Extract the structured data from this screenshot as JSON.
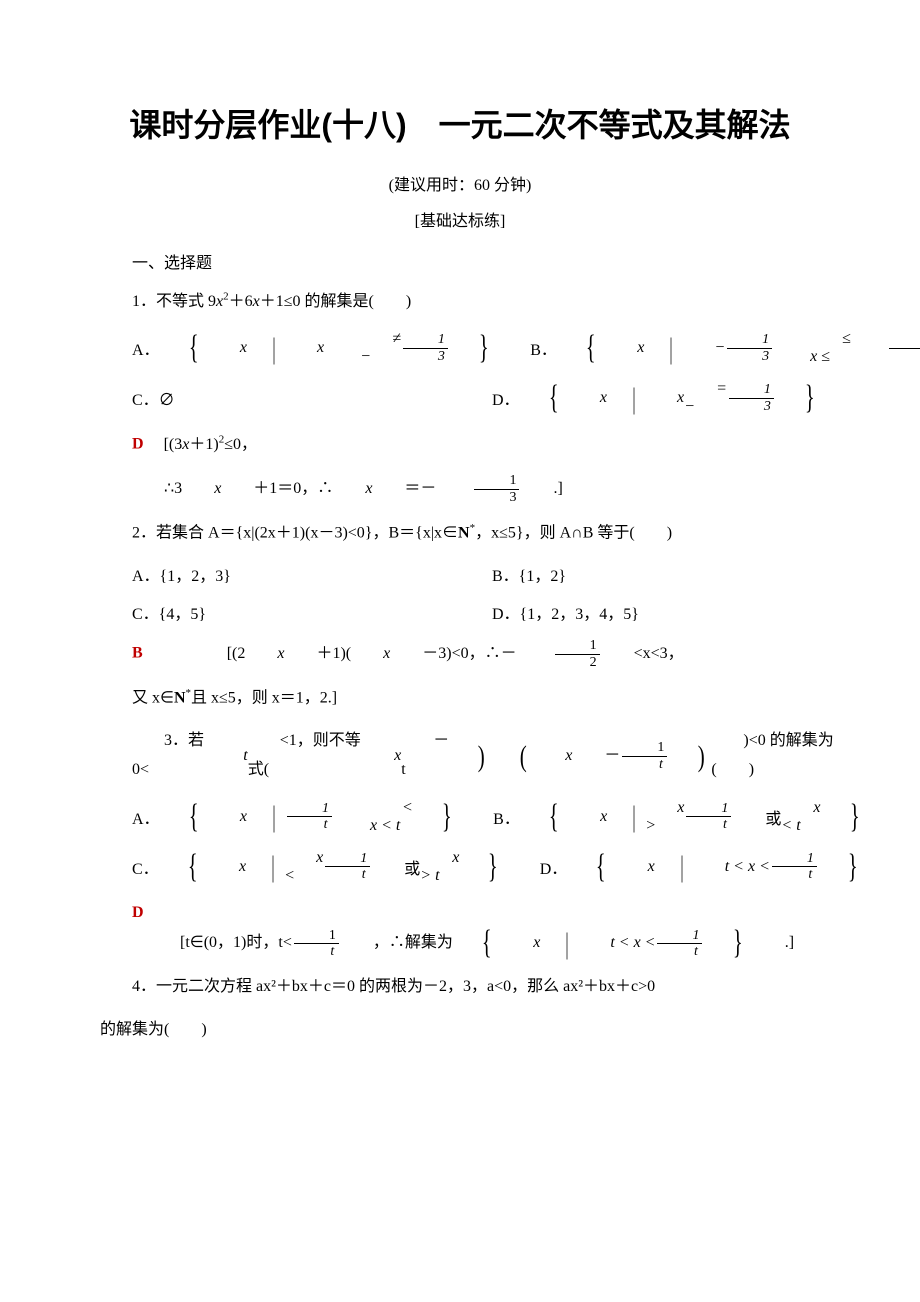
{
  "colors": {
    "answer": "#c00000",
    "text": "#000000",
    "background": "#ffffff"
  },
  "title": "课时分层作业(十八)　一元二次不等式及其解法",
  "subtitle": "(建议用时：60 分钟)",
  "section_label": "[基础达标练]",
  "sec1_header": "一、选择题",
  "q1": {
    "stem_pre": "1．不等式 9",
    "stem_mid": "＋6",
    "stem_post": "＋1≤0 的解集是(　　)",
    "A_lead": "A．",
    "A_set_lhs": "x",
    "A_set_rel": "≠ −",
    "B_lead": "B．",
    "B_set_lhs": "x",
    "B_left": "−",
    "B_rel1": "≤ x ≤",
    "C": "C．∅",
    "D_lead": "D．",
    "D_set_lhs": "x",
    "D_rel": "= −",
    "ans": "D",
    "sol1_pre": "[(3",
    "sol1_mid": "＋1)",
    "sol1_post": "≤0，",
    "sol2_pre": "∴3",
    "sol2_mid": "＋1＝0，∴",
    "sol2_post": "＝－",
    "sol2_end": ".]"
  },
  "q2": {
    "stem_pre": "2．若集合 ",
    "stem_A": "A＝{x|(2x＋1)(x－3)<0}，",
    "stem_B": "B＝{x|x∈",
    "stem_N": "N",
    "stem_star": "*",
    "stem_B2": "，x≤5}，则 ",
    "stem_AcapB": "A∩B 等于(　　)",
    "A": "A．{1，2，3}",
    "B": "B．{1，2}",
    "C": "C．{4，5}",
    "D": "D．{1，2，3，4，5}",
    "ans": "B",
    "sol1_pre": "[(2",
    "sol1_mid": "＋1)(",
    "sol1_mid2": "－3)<0，∴－",
    "sol1_post": "<x<3，",
    "sol2": "又 x∈",
    "sol2_N": "N",
    "sol2_star": "*",
    "sol2_post": "且 x≤5，则 x＝1，2.]"
  },
  "q3": {
    "stem_pre": "3．若 0<",
    "stem_t": "t",
    "stem_mid": "<1，则不等式(",
    "stem_x": "x",
    "stem_minus_t": "－t",
    "stem_paren_mid": ")(",
    "stem_x2": "x",
    "stem_minus": "－",
    "stem_post": ")<0 的解集为(　　)",
    "A_lead": "A．",
    "A_rel": "< x < t",
    "B_lead": "B．",
    "B_rel1": "x >",
    "B_or": "或",
    "B_rel2": "x < t",
    "C_lead": "C．",
    "C_rel1": "x <",
    "C_or": "或",
    "C_rel2": "x > t",
    "D_lead": "D．",
    "D_rel": "t < x <",
    "ans": "D",
    "sol_pre": "[t∈(0，1)时，t<",
    "sol_mid": "，∴解集为",
    "sol_set_rel": "t < x <",
    "sol_end": ".]"
  },
  "q4": {
    "line1_pre": "4．一元二次方程 ",
    "line1_eq": "ax²＋bx＋c＝0 的两根为－2，3，a<0，那么 ax²＋bx＋c>0",
    "line2": "的解集为(　　)"
  }
}
